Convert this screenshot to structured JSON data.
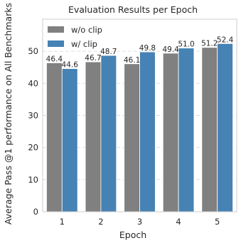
{
  "chart_data": {
    "type": "bar",
    "title": "Evaluation Results per Epoch",
    "xlabel": "Epoch",
    "ylabel": "Average Pass @1 performance on All Benchmarks",
    "categories": [
      "1",
      "2",
      "3",
      "4",
      "5"
    ],
    "series": [
      {
        "name": "w/o clip",
        "values": [
          46.4,
          46.7,
          46.1,
          49.4,
          51.2
        ],
        "color": "#808080"
      },
      {
        "name": "w/ clip",
        "values": [
          44.6,
          48.7,
          49.8,
          51.0,
          52.4
        ],
        "color": "#4682b4"
      }
    ],
    "ylim": [
      0,
      60
    ],
    "yticks": [
      0,
      10,
      20,
      30,
      40,
      50
    ],
    "grid": true,
    "legend_position": "top-left"
  }
}
